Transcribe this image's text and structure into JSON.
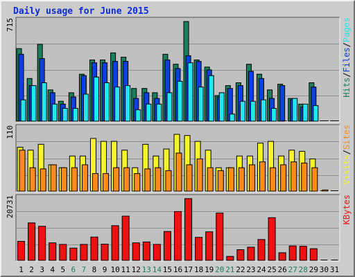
{
  "title": "Daily usage for June 2015",
  "colors": {
    "background": "#cccccc",
    "plot_background": "#c0c0c0",
    "hits": "#1a7f5a",
    "files": "#0b40e0",
    "pages": "#22e6f0",
    "visits": "#f5f52a",
    "sites": "#ff8c1a",
    "kbytes": "#ee1111",
    "weekend_label": "#1a7f5a",
    "weekday_label": "#000000"
  },
  "chart_data": {
    "type": "bar",
    "x": [
      "1",
      "2",
      "3",
      "4",
      "5",
      "6",
      "7",
      "8",
      "9",
      "10",
      "11",
      "12",
      "13",
      "14",
      "15",
      "16",
      "17",
      "18",
      "19",
      "20",
      "21",
      "22",
      "23",
      "24",
      "25",
      "26",
      "27",
      "28",
      "29",
      "30",
      "31"
    ],
    "weekend_days": [
      "6",
      "7",
      "13",
      "14",
      "20",
      "21",
      "27",
      "28"
    ],
    "panels": [
      {
        "id": "hits_files_pages",
        "ymax_label": "715",
        "ylim": [
          0,
          715
        ],
        "right_labels": [
          {
            "text": "Pages",
            "color": "#22e6f0"
          },
          {
            "text": "Files",
            "color": "#0b40e0"
          },
          {
            "text": "Hits",
            "color": "#1a7f5a"
          }
        ],
        "series": [
          {
            "name": "Hits",
            "color": "#1a7f5a",
            "values": [
              510,
              300,
              540,
              220,
              140,
              200,
              330,
              430,
              430,
              480,
              450,
              230,
              230,
              200,
              470,
              400,
              700,
              430,
              380,
              180,
              250,
              270,
              400,
              330,
              220,
              260,
              160,
              120,
              270,
              0,
              0
            ]
          },
          {
            "name": "Files",
            "color": "#0b40e0",
            "values": [
              470,
              250,
              440,
              200,
              120,
              170,
              320,
              410,
              410,
              420,
              420,
              160,
              200,
              160,
              430,
              370,
              460,
              420,
              360,
              170,
              230,
              250,
              350,
              300,
              160,
              250,
              150,
              100,
              240,
              0,
              0
            ]
          },
          {
            "name": "Pages",
            "color": "#22e6f0",
            "values": [
              150,
              250,
              270,
              120,
              90,
              90,
              190,
              310,
              270,
              240,
              250,
              80,
              120,
              120,
              200,
              280,
              410,
              240,
              320,
              200,
              50,
              140,
              140,
              150,
              90,
              0,
              160,
              120,
              110,
              0,
              0
            ]
          }
        ]
      },
      {
        "id": "visits_sites",
        "ymax_label": "110",
        "ylim": [
          0,
          110
        ],
        "right_labels": [
          {
            "text": "Sites",
            "color": "#ff8c1a"
          },
          {
            "text": "Visits",
            "color": "#f5f52a"
          }
        ],
        "series": [
          {
            "name": "Visits",
            "color": "#f5f52a",
            "values": [
              75,
              70,
              80,
              45,
              40,
              60,
              60,
              90,
              85,
              85,
              70,
              40,
              80,
              60,
              72,
              97,
              95,
              85,
              70,
              40,
              40,
              60,
              60,
              82,
              85,
              60,
              70,
              68,
              55,
              0,
              0
            ]
          },
          {
            "name": "Sites",
            "color": "#ff8c1a",
            "values": [
              70,
              40,
              38,
              45,
              40,
              40,
              45,
              30,
              30,
              40,
              40,
              30,
              38,
              40,
              35,
              65,
              45,
              55,
              40,
              35,
              40,
              40,
              45,
              50,
              40,
              45,
              50,
              48,
              40,
              2,
              0
            ]
          }
        ]
      },
      {
        "id": "kbytes",
        "ymax_label": "20731",
        "ylim": [
          0,
          20731
        ],
        "right_labels": [
          {
            "text": "KBytes",
            "color": "#ee1111"
          }
        ],
        "series": [
          {
            "name": "KBytes",
            "color": "#ee1111",
            "values": [
              6200,
              12200,
              11100,
              5700,
              5200,
              4000,
              5200,
              7600,
              5300,
              11300,
              14400,
              5700,
              6000,
              5200,
              9400,
              15900,
              20100,
              7500,
              9300,
              15400,
              1300,
              3500,
              4300,
              6800,
              13900,
              2500,
              4700,
              4600,
              3800,
              0,
              0
            ]
          }
        ]
      }
    ]
  }
}
